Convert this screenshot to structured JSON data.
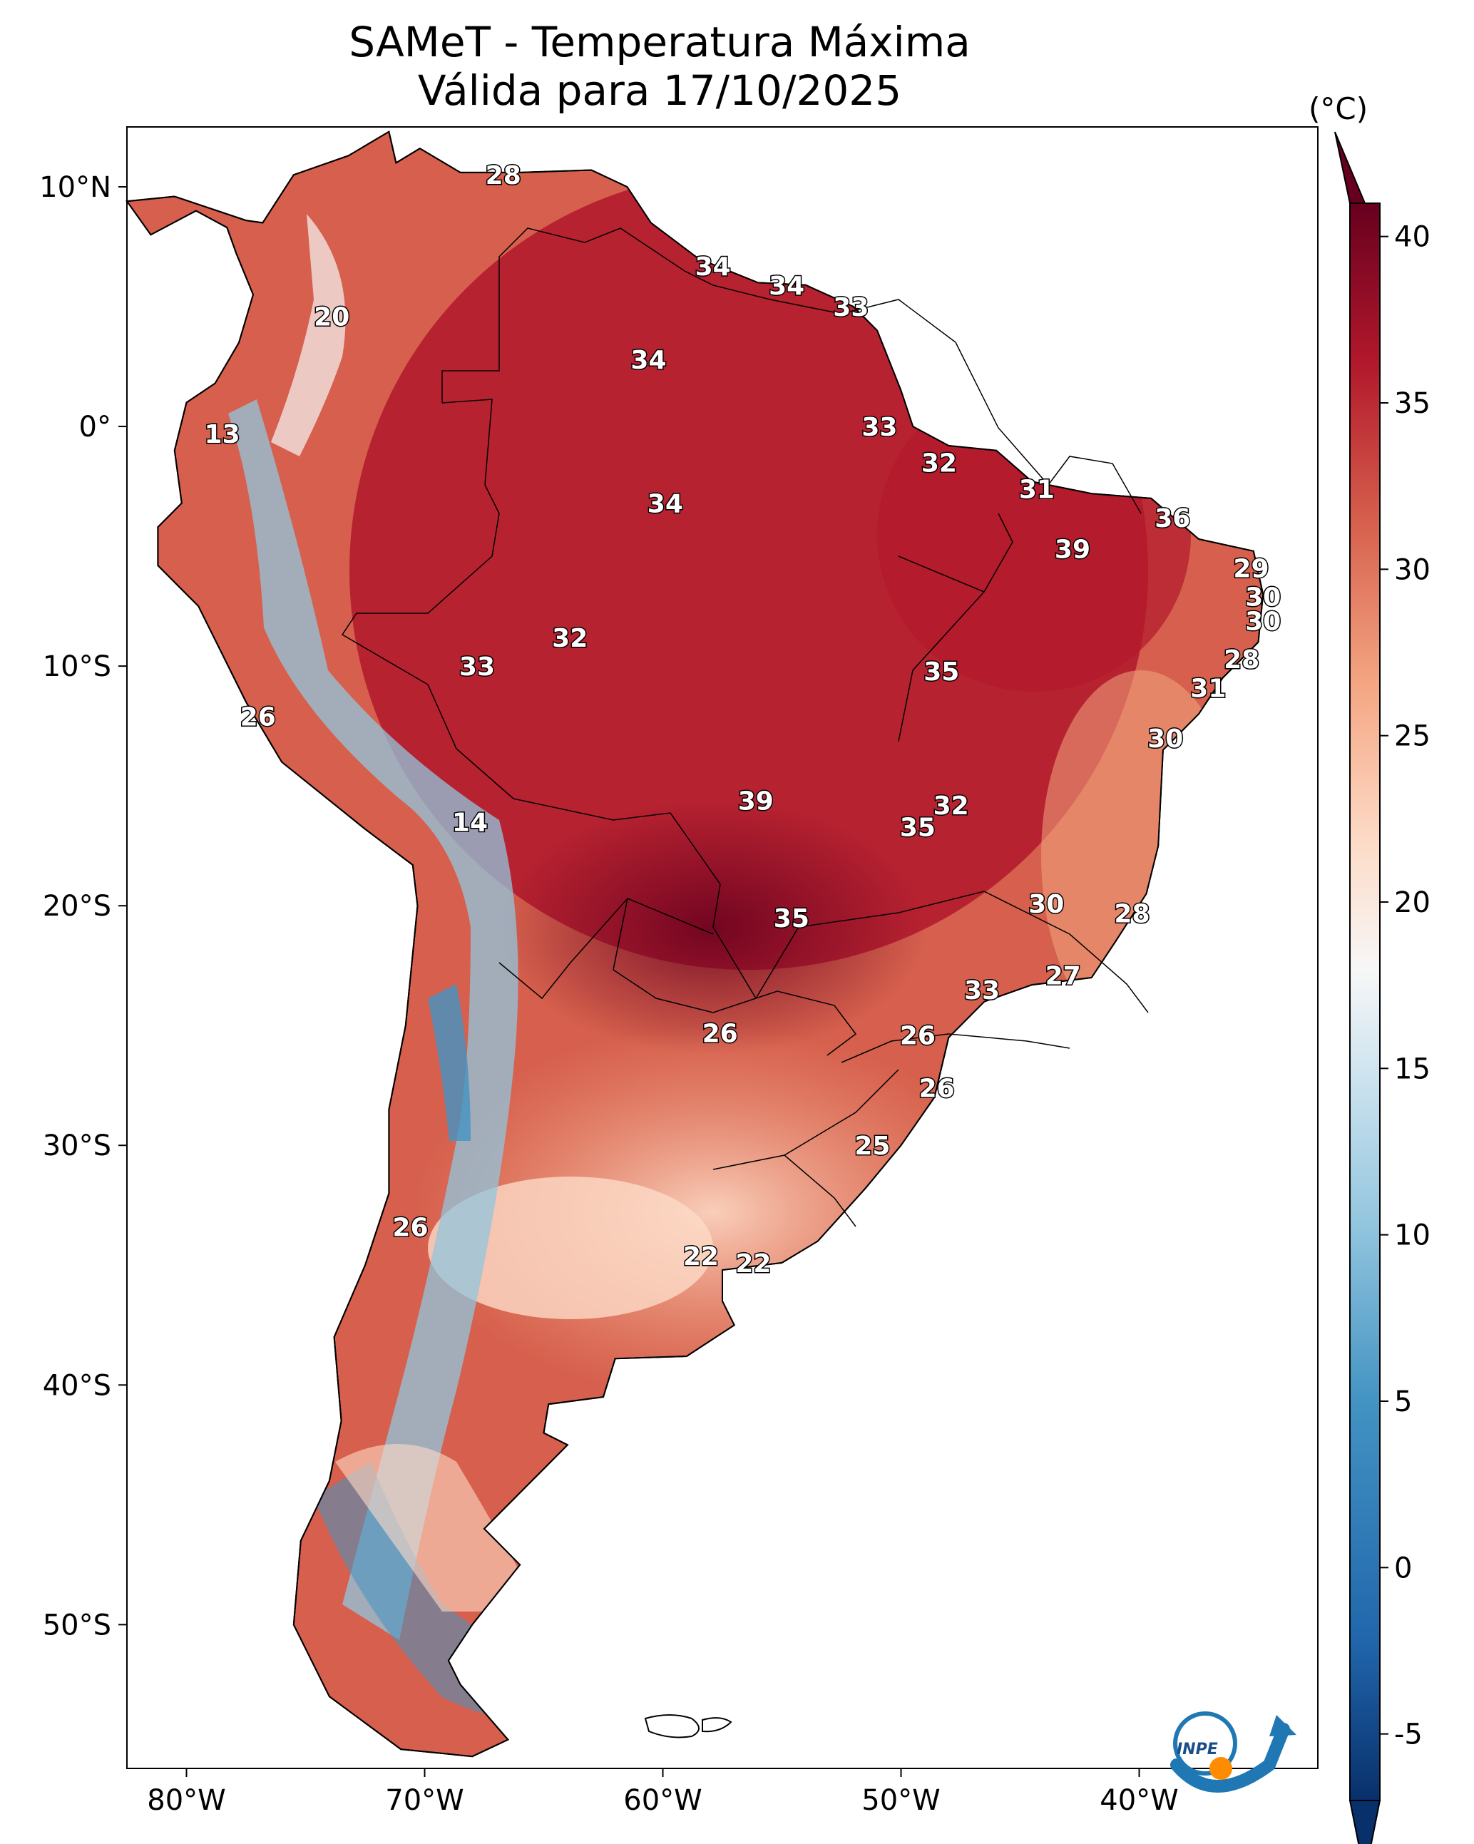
{
  "title": {
    "line1": "SAMeT - Temperatura Máxima",
    "line2": "Válida para 17/10/2025"
  },
  "colorbar": {
    "unit": "(°C)",
    "min": -7,
    "max": 41,
    "ticks": [
      "-5",
      "0",
      "5",
      "10",
      "15",
      "20",
      "25",
      "30",
      "35",
      "40"
    ],
    "tick_values": [
      -5,
      0,
      5,
      10,
      15,
      20,
      25,
      30,
      35,
      40
    ],
    "colors": [
      "#08306b",
      "#2166ac",
      "#4393c3",
      "#92c5de",
      "#d1e5f0",
      "#f7f7f7",
      "#fddbc7",
      "#f4a582",
      "#d6604d",
      "#b2182b",
      "#67001f"
    ]
  },
  "axes": {
    "lon_ticks": [
      "80°W",
      "70°W",
      "60°W",
      "50°W",
      "40°W"
    ],
    "lon_values": [
      -80,
      -70,
      -60,
      -50,
      -40
    ],
    "lat_ticks": [
      "10°N",
      "0°",
      "10°S",
      "20°S",
      "30°S",
      "40°S",
      "50°S"
    ],
    "lat_values": [
      10,
      0,
      -10,
      -20,
      -30,
      -40,
      -50
    ],
    "lon_range": [
      -82.5,
      -32.5
    ],
    "lat_range": [
      12.5,
      -56
    ]
  },
  "city_labels": [
    {
      "text": "28",
      "lon": -66.7,
      "lat": 10.5
    },
    {
      "text": "34",
      "lon": -57.9,
      "lat": 6.7
    },
    {
      "text": "34",
      "lon": -54.8,
      "lat": 5.9
    },
    {
      "text": "33",
      "lon": -52.1,
      "lat": 5.0
    },
    {
      "text": "20",
      "lon": -73.9,
      "lat": 4.6
    },
    {
      "text": "34",
      "lon": -60.6,
      "lat": 2.8
    },
    {
      "text": "13",
      "lon": -78.5,
      "lat": -0.3
    },
    {
      "text": "33",
      "lon": -50.9,
      "lat": 0.0
    },
    {
      "text": "32",
      "lon": -48.4,
      "lat": -1.5
    },
    {
      "text": "31",
      "lon": -44.3,
      "lat": -2.6
    },
    {
      "text": "34",
      "lon": -59.9,
      "lat": -3.2
    },
    {
      "text": "36",
      "lon": -38.6,
      "lat": -3.8
    },
    {
      "text": "39",
      "lon": -42.8,
      "lat": -5.1
    },
    {
      "text": "29",
      "lon": -35.3,
      "lat": -5.9
    },
    {
      "text": "30",
      "lon": -34.8,
      "lat": -7.1
    },
    {
      "text": "30",
      "lon": -34.8,
      "lat": -8.1
    },
    {
      "text": "32",
      "lon": -63.9,
      "lat": -8.8
    },
    {
      "text": "28",
      "lon": -35.7,
      "lat": -9.7
    },
    {
      "text": "35",
      "lon": -48.3,
      "lat": -10.2
    },
    {
      "text": "33",
      "lon": -67.8,
      "lat": -10.0
    },
    {
      "text": "31",
      "lon": -37.1,
      "lat": -10.9
    },
    {
      "text": "26",
      "lon": -77.0,
      "lat": -12.1
    },
    {
      "text": "30",
      "lon": -38.9,
      "lat": -13.0
    },
    {
      "text": "39",
      "lon": -56.1,
      "lat": -15.6
    },
    {
      "text": "32",
      "lon": -47.9,
      "lat": -15.8
    },
    {
      "text": "35",
      "lon": -49.3,
      "lat": -16.7
    },
    {
      "text": "14",
      "lon": -68.1,
      "lat": -16.5
    },
    {
      "text": "30",
      "lon": -43.9,
      "lat": -19.9
    },
    {
      "text": "28",
      "lon": -40.3,
      "lat": -20.3
    },
    {
      "text": "35",
      "lon": -54.6,
      "lat": -20.5
    },
    {
      "text": "27",
      "lon": -43.2,
      "lat": -22.9
    },
    {
      "text": "33",
      "lon": -46.6,
      "lat": -23.5
    },
    {
      "text": "26",
      "lon": -57.6,
      "lat": -25.3
    },
    {
      "text": "26",
      "lon": -49.3,
      "lat": -25.4
    },
    {
      "text": "26",
      "lon": -48.5,
      "lat": -27.6
    },
    {
      "text": "25",
      "lon": -51.2,
      "lat": -30.0
    },
    {
      "text": "26",
      "lon": -70.6,
      "lat": -33.4
    },
    {
      "text": "22",
      "lon": -58.4,
      "lat": -34.6
    },
    {
      "text": "22",
      "lon": -56.2,
      "lat": -34.9
    }
  ],
  "logo": {
    "text": "INPE"
  }
}
